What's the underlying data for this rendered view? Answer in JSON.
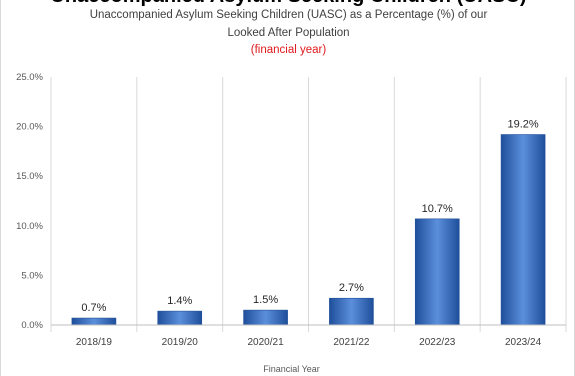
{
  "cut_heading": "Unaccompanied Asylum Seeking Children (UASC)",
  "chart_data": {
    "type": "bar",
    "title_lines": [
      "Unaccompanied Asylum Seeking Children (UASC) as a Percentage (%) of our",
      "Looked After Population"
    ],
    "subtitle": "(financial year)",
    "xlabel": "Financial Year",
    "ylabel": "",
    "categories": [
      "2018/19",
      "2019/20",
      "2020/21",
      "2021/22",
      "2022/23",
      "2023/24"
    ],
    "values": [
      0.7,
      1.4,
      1.5,
      2.7,
      10.7,
      19.2
    ],
    "data_labels": [
      "0.7%",
      "1.4%",
      "1.5%",
      "2.7%",
      "10.7%",
      "19.2%"
    ],
    "y_ticks": [
      0,
      5,
      10,
      15,
      20,
      25
    ],
    "y_tick_labels": [
      "0.0%",
      "5.0%",
      "10.0%",
      "15.0%",
      "20.0%",
      "25.0%"
    ],
    "ylim": [
      0,
      25
    ],
    "grid": "vertical category separators",
    "legend": "none",
    "colors": {
      "bar": "#3a6fc4",
      "bar_dark": "#1f4f9a",
      "bar_light": "#5b8fdc",
      "subtitle": "#e0191c"
    }
  }
}
